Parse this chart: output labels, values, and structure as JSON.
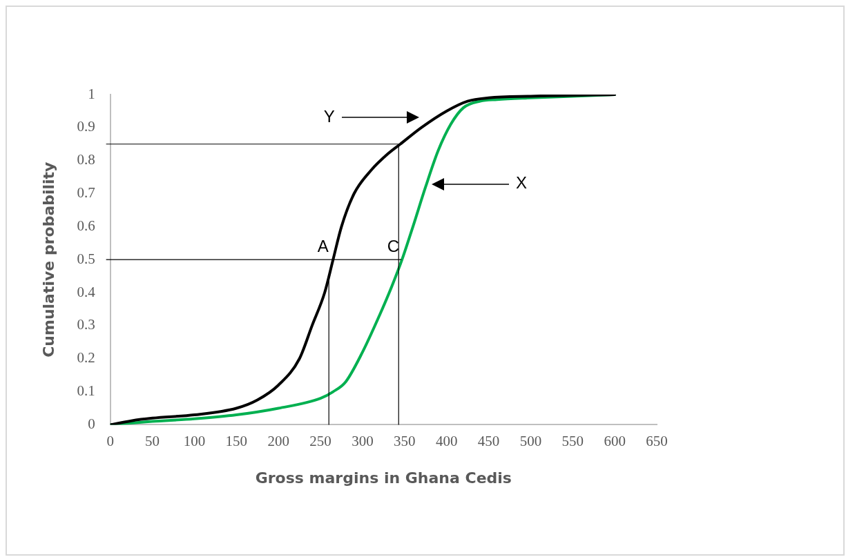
{
  "chart_data": {
    "type": "line",
    "xlabel": "Gross margins in Ghana Cedis",
    "ylabel": "Cumulative probability",
    "xlim": [
      0,
      650
    ],
    "xticks": [
      0,
      50,
      100,
      150,
      200,
      250,
      300,
      350,
      400,
      450,
      500,
      550,
      600,
      650
    ],
    "ylim": [
      0,
      1
    ],
    "yticks": [
      0,
      0.1,
      0.2,
      0.3,
      0.4,
      0.5,
      0.6,
      0.7,
      0.8,
      0.9,
      1
    ],
    "grid": false,
    "legend": false,
    "marker": "none",
    "line_style": "solid",
    "series": [
      {
        "color": "#000000",
        "x": [
          0,
          25,
          50,
          100,
          150,
          175,
          200,
          225,
          240,
          255,
          265,
          275,
          290,
          310,
          330,
          345,
          370,
          400,
          425,
          450,
          500,
          600
        ],
        "values": [
          0,
          0.012,
          0.02,
          0.03,
          0.05,
          0.075,
          0.12,
          0.2,
          0.3,
          0.4,
          0.5,
          0.6,
          0.7,
          0.77,
          0.82,
          0.85,
          0.9,
          0.95,
          0.98,
          0.99,
          0.995,
          1
        ]
      },
      {
        "color": "#00b050",
        "x": [
          0,
          50,
          100,
          150,
          200,
          250,
          265,
          280,
          300,
          320,
          335,
          347,
          360,
          375,
          390,
          405,
          420,
          440,
          460,
          500,
          550,
          600
        ],
        "values": [
          0,
          0.01,
          0.018,
          0.03,
          0.05,
          0.08,
          0.1,
          0.13,
          0.22,
          0.33,
          0.42,
          0.5,
          0.6,
          0.72,
          0.83,
          0.91,
          0.96,
          0.98,
          0.985,
          0.99,
          0.995,
          1
        ]
      }
    ],
    "ref_lines": [
      {
        "axis": "y",
        "value": 0.85
      },
      {
        "axis": "y",
        "value": 0.5
      },
      {
        "axis": "x",
        "value": 343
      },
      {
        "axis": "x",
        "value": 260
      }
    ],
    "annotations": [
      {
        "text": "A",
        "x": 263,
        "y": 0.5
      },
      {
        "text": "C",
        "x": 347,
        "y": 0.5
      },
      "Y",
      "X"
    ]
  }
}
